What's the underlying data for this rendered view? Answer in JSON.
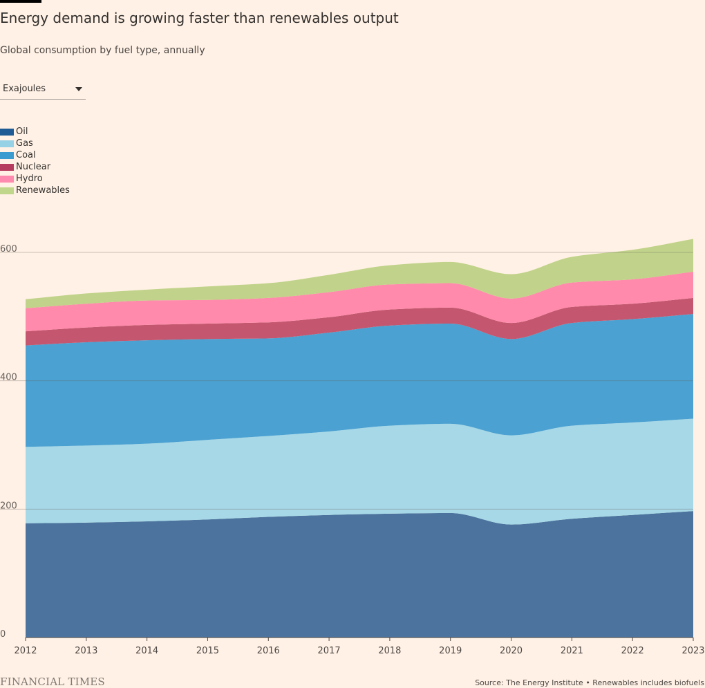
{
  "header": {
    "title": "Energy demand is growing faster than renewables output",
    "subtitle": "Global consumption by fuel type, annually"
  },
  "controls": {
    "unit_select": "Exajoules"
  },
  "footer": {
    "logo_text": "FINANCIAL TIMES",
    "source": "Source: The Energy Institute • Renewables includes biofuels"
  },
  "chart_data": {
    "type": "area",
    "stacked": true,
    "categories": [
      "2012",
      "2013",
      "2014",
      "2015",
      "2016",
      "2017",
      "2018",
      "2019",
      "2020",
      "2021",
      "2022",
      "2023"
    ],
    "series": [
      {
        "name": "Oil",
        "color": "#4b739e",
        "legend_color": "#1e5a93",
        "values": [
          178,
          179,
          181,
          184,
          188,
          191,
          193,
          194,
          176,
          185,
          191,
          197
        ]
      },
      {
        "name": "Gas",
        "color": "#a6d8e7",
        "legend_color": "#96d1e6",
        "values": [
          119,
          120,
          121,
          124,
          126,
          130,
          137,
          139,
          139,
          145,
          144,
          144
        ]
      },
      {
        "name": "Coal",
        "color": "#4aa1d2",
        "legend_color": "#3a9bd1",
        "values": [
          158,
          161,
          161,
          157,
          152,
          154,
          156,
          156,
          150,
          160,
          161,
          163
        ]
      },
      {
        "name": "Nuclear",
        "color": "#c4576f",
        "legend_color": "#b53c5e",
        "values": [
          22,
          23,
          24,
          24,
          25,
          24,
          25,
          25,
          25,
          25,
          24,
          25
        ]
      },
      {
        "name": "Hydro",
        "color": "#ff8aab",
        "legend_color": "#ff8ab0",
        "values": [
          36,
          37,
          38,
          37,
          38,
          39,
          39,
          38,
          38,
          38,
          38,
          41
        ]
      },
      {
        "name": "Renewables",
        "color": "#c1d38a",
        "legend_color": "#c0d68a",
        "values": [
          14,
          16,
          17,
          21,
          23,
          27,
          30,
          33,
          38,
          40,
          46,
          51
        ]
      }
    ],
    "y_ticks": [
      0,
      200,
      400,
      600
    ],
    "ylim": [
      0,
      600
    ],
    "xlabel": "",
    "ylabel": "",
    "grid": true,
    "legend_position": "top-left"
  }
}
